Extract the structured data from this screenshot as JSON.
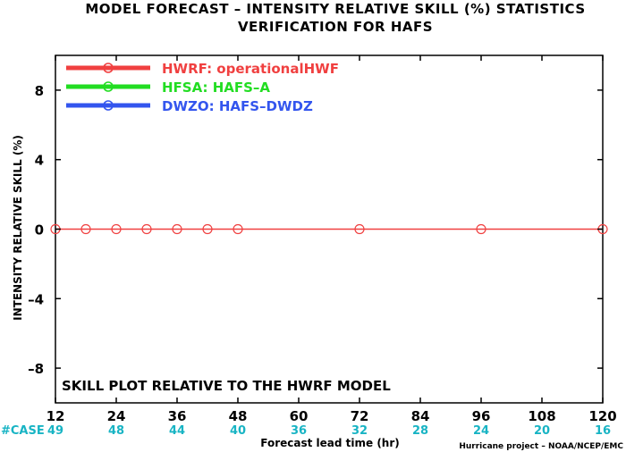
{
  "chart_data": {
    "type": "line",
    "title": "MODEL FORECAST – INTENSITY RELATIVE SKILL (%) STATISTICS",
    "subtitle": "VERIFICATION FOR HAFS",
    "xlabel": "Forecast lead time (hr)",
    "ylabel": "INTENSITY RELATIVE SKILL (%)",
    "xlim": [
      12,
      120
    ],
    "ylim": [
      -10,
      10
    ],
    "x_ticks": [
      12,
      24,
      36,
      48,
      60,
      72,
      84,
      96,
      108,
      120
    ],
    "y_ticks": [
      8,
      4,
      0,
      -4,
      -8
    ],
    "y_tick_labels": [
      "8",
      "4",
      "0",
      "–4",
      "–8"
    ],
    "grid": false,
    "legend_position": "top-left",
    "series": [
      {
        "name": "HWRF: operationalHWF",
        "color": "#f04040",
        "x": [
          12,
          18,
          24,
          30,
          36,
          42,
          48,
          72,
          96,
          120
        ],
        "values": [
          0,
          0,
          0,
          0,
          0,
          0,
          0,
          0,
          0,
          0
        ]
      },
      {
        "name": "HFSA: HAFS–A",
        "color": "#22dd22",
        "x": [],
        "values": []
      },
      {
        "name": "DWZO: HAFS–DWDZ",
        "color": "#3355ee",
        "x": [],
        "values": []
      }
    ],
    "annotation": "SKILL PLOT RELATIVE TO THE HWRF MODEL",
    "case_label": "#CASE",
    "cases": {
      "x": [
        12,
        24,
        36,
        48,
        60,
        72,
        84,
        96,
        108,
        120
      ],
      "values": [
        "49",
        "48",
        "44",
        "40",
        "36",
        "32",
        "28",
        "24",
        "20",
        "16"
      ]
    },
    "credit": "Hurricane project – NOAA/NCEP/EMC"
  }
}
